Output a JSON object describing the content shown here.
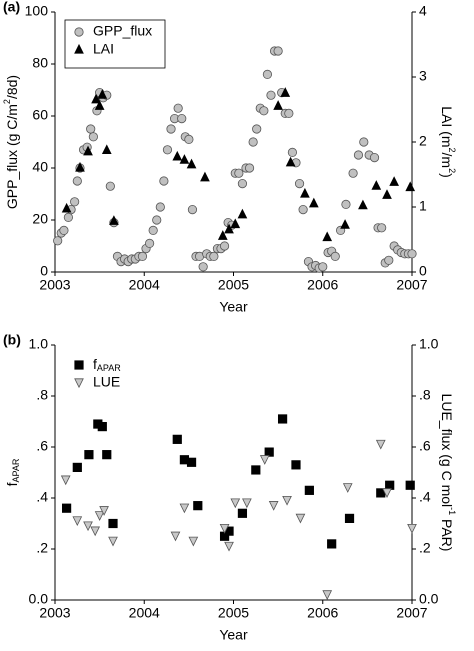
{
  "chart_data": [
    {
      "type": "scatter",
      "title": "(a)",
      "x_label": "Year",
      "y_label": [
        "GPP_flux (g C/m",
        {
          "sup": "2"
        },
        "/8d)"
      ],
      "y2_label": [
        "LAI (m",
        {
          "sup": "2"
        },
        "/m",
        {
          "sup": "2"
        },
        ")"
      ],
      "xlim": [
        2003,
        2007
      ],
      "xticks": [
        2003,
        2004,
        2005,
        2006,
        2007
      ],
      "ylim": [
        0,
        100
      ],
      "yticks": [
        0,
        20,
        40,
        60,
        80,
        100
      ],
      "y2lim": [
        0,
        4
      ],
      "y2ticks": [
        0,
        1,
        2,
        3,
        4
      ],
      "legend": "upper left",
      "legend_frame": true,
      "series": [
        {
          "name": "GPP_flux",
          "marker": "circle",
          "color": "#c0c0c0",
          "x": [
            2003.03,
            2003.07,
            2003.1,
            2003.15,
            2003.18,
            2003.22,
            2003.25,
            2003.28,
            2003.32,
            2003.36,
            2003.4,
            2003.43,
            2003.47,
            2003.5,
            2003.54,
            2003.58,
            2003.62,
            2003.66,
            2003.7,
            2003.74,
            2003.78,
            2003.82,
            2003.86,
            2003.9,
            2003.94,
            2003.98,
            2004.02,
            2004.06,
            2004.1,
            2004.14,
            2004.18,
            2004.22,
            2004.26,
            2004.3,
            2004.34,
            2004.38,
            2004.42,
            2004.46,
            2004.5,
            2004.54,
            2004.58,
            2004.62,
            2004.66,
            2004.7,
            2004.74,
            2004.78,
            2004.82,
            2004.86,
            2004.9,
            2004.94,
            2004.98,
            2005.02,
            2005.06,
            2005.1,
            2005.14,
            2005.18,
            2005.22,
            2005.26,
            2005.3,
            2005.34,
            2005.38,
            2005.42,
            2005.46,
            2005.5,
            2005.54,
            2005.58,
            2005.62,
            2005.66,
            2005.7,
            2005.74,
            2005.78,
            2005.84,
            2005.88,
            2005.92,
            2005.96,
            2006.0,
            2006.06,
            2006.1,
            2006.14,
            2006.2,
            2006.26,
            2006.34,
            2006.4,
            2006.46,
            2006.52,
            2006.58,
            2006.62,
            2006.66,
            2006.7,
            2006.74,
            2006.8,
            2006.84,
            2006.88,
            2006.92,
            2006.96,
            2007.0
          ],
          "values": [
            12,
            15,
            16,
            21,
            24,
            27,
            35,
            40,
            47,
            48,
            55,
            52,
            62,
            69,
            67,
            68,
            33,
            19,
            6,
            4,
            5,
            4,
            5,
            5,
            6,
            6,
            9,
            11,
            16,
            20,
            25,
            35,
            47,
            55,
            59,
            63,
            59,
            52,
            51,
            24,
            6,
            6,
            2,
            7,
            6,
            6,
            9,
            9,
            10,
            19,
            18,
            38,
            38,
            34,
            40,
            40,
            50,
            55,
            63,
            62,
            76,
            68,
            85,
            85,
            69,
            61,
            61,
            46,
            42,
            34,
            24,
            4,
            2,
            2.5,
            1.5,
            2,
            7.5,
            8,
            6,
            16,
            26,
            38,
            45,
            50,
            45,
            44,
            17,
            17,
            3.5,
            4.5,
            10,
            8.5,
            7.5,
            7,
            7,
            7
          ]
        },
        {
          "name": "LAI",
          "marker": "triangle-up",
          "color": "#000000",
          "axis": "y2",
          "x": [
            2003.13,
            2003.28,
            2003.37,
            2003.46,
            2003.5,
            2003.53,
            2003.58,
            2003.66,
            2004.37,
            2004.45,
            2004.53,
            2004.68,
            2004.88,
            2004.95,
            2005.02,
            2005.1,
            2005.5,
            2005.58,
            2005.64,
            2005.8,
            2005.9,
            2006.05,
            2006.25,
            2006.45,
            2006.6,
            2006.72,
            2006.8,
            2006.98
          ],
          "values": [
            0.97,
            1.6,
            1.85,
            2.65,
            2.55,
            2.72,
            1.87,
            0.78,
            1.77,
            1.72,
            1.65,
            1.45,
            0.55,
            0.65,
            0.73,
            0.88,
            2.55,
            2.75,
            1.68,
            1.2,
            1.05,
            0.53,
            0.72,
            1.02,
            1.32,
            1.18,
            1.38,
            1.3
          ]
        }
      ]
    },
    {
      "type": "scatter",
      "title": "(b)",
      "x_label": "Year",
      "y_label": [
        "f",
        {
          "sub": "APAR"
        }
      ],
      "y2_label": [
        "LUE_flux (g C mol",
        {
          "sup": "-1"
        },
        " PAR)"
      ],
      "xlim": [
        2003,
        2007
      ],
      "xticks": [
        2003,
        2004,
        2005,
        2006,
        2007
      ],
      "ylim": [
        0,
        1
      ],
      "yticks": [
        {
          "value": 0,
          "label": "0.0"
        },
        {
          "value": 0.2,
          "label": ".2"
        },
        {
          "value": 0.4,
          "label": ".4"
        },
        {
          "value": 0.6,
          "label": ".6"
        },
        {
          "value": 0.8,
          "label": ".8"
        },
        {
          "value": 1,
          "label": "1.0"
        }
      ],
      "y2lim": [
        0,
        1
      ],
      "y2ticks": [
        {
          "value": 0,
          "label": "0.0"
        },
        {
          "value": 0.2,
          "label": ".2"
        },
        {
          "value": 0.4,
          "label": ".4"
        },
        {
          "value": 0.6,
          "label": ".6"
        },
        {
          "value": 0.8,
          "label": ".8"
        },
        {
          "value": 1,
          "label": "1.0"
        }
      ],
      "legend": "upper left",
      "legend_frame": false,
      "series": [
        {
          "name": [
            "f",
            {
              "sub": "APAR"
            }
          ],
          "marker": "square",
          "color": "#000000",
          "x": [
            2003.13,
            2003.25,
            2003.38,
            2003.48,
            2003.53,
            2003.58,
            2003.65,
            2004.37,
            2004.45,
            2004.53,
            2004.6,
            2004.9,
            2004.95,
            2005.1,
            2005.25,
            2005.4,
            2005.55,
            2005.7,
            2005.85,
            2006.1,
            2006.3,
            2006.65,
            2006.75,
            2006.98
          ],
          "values": [
            0.36,
            0.52,
            0.57,
            0.69,
            0.68,
            0.57,
            0.3,
            0.63,
            0.55,
            0.54,
            0.37,
            0.25,
            0.27,
            0.34,
            0.51,
            0.58,
            0.71,
            0.53,
            0.43,
            0.22,
            0.32,
            0.42,
            0.45,
            0.45
          ]
        },
        {
          "name": "LUE",
          "marker": "triangle-down",
          "color": "#c8c8c8",
          "axis": "y2",
          "x": [
            2003.12,
            2003.25,
            2003.37,
            2003.45,
            2003.5,
            2003.55,
            2003.65,
            2004.35,
            2004.45,
            2004.55,
            2004.9,
            2004.95,
            2005.02,
            2005.15,
            2005.35,
            2005.45,
            2005.6,
            2005.75,
            2006.05,
            2006.28,
            2006.65,
            2006.72,
            2007.0
          ],
          "values": [
            0.47,
            0.31,
            0.29,
            0.27,
            0.33,
            0.35,
            0.23,
            0.25,
            0.36,
            0.23,
            0.28,
            0.21,
            0.38,
            0.38,
            0.55,
            0.37,
            0.39,
            0.32,
            0.02,
            0.44,
            0.61,
            0.42,
            0.28
          ]
        }
      ]
    }
  ]
}
